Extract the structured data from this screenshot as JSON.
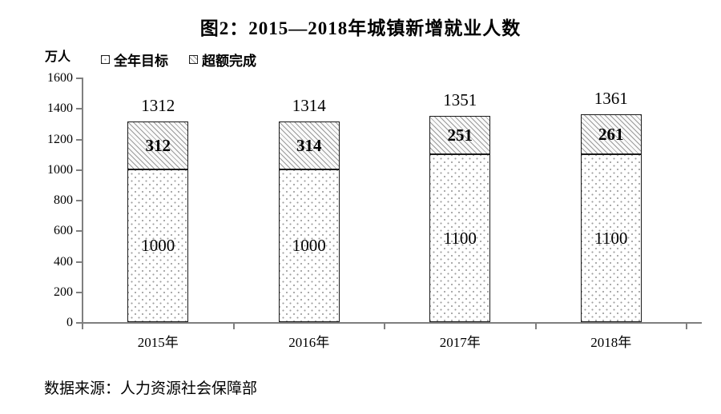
{
  "title": "图2：2015—2018年城镇新增就业人数",
  "y_axis_unit": "万人",
  "legend": {
    "items": [
      {
        "label": "全年目标",
        "pattern": "dots"
      },
      {
        "label": "超额完成",
        "pattern": "hatch"
      }
    ]
  },
  "source_note": "数据来源：人力资源社会保障部",
  "chart_data": {
    "type": "bar",
    "stacked": true,
    "title": "图2：2015—2018年城镇新增就业人数",
    "ylabel": "万人",
    "categories": [
      "2015年",
      "2016年",
      "2017年",
      "2018年"
    ],
    "series": [
      {
        "name": "全年目标",
        "pattern": "dots",
        "values": [
          1000,
          1000,
          1100,
          1100
        ]
      },
      {
        "name": "超额完成",
        "pattern": "hatch",
        "values": [
          312,
          314,
          251,
          261
        ]
      }
    ],
    "totals": [
      1312,
      1314,
      1351,
      1361
    ],
    "ylim": [
      0,
      1600
    ],
    "ytick_step": 200,
    "grid": false,
    "legend_position": "top-left"
  }
}
